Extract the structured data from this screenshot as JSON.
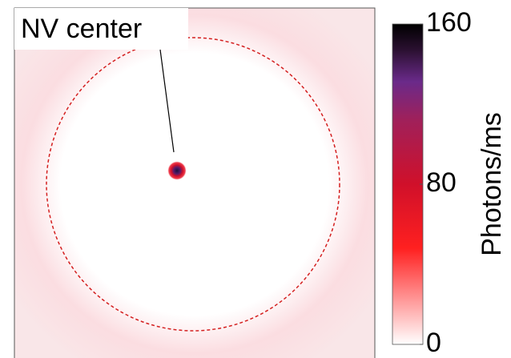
{
  "chart_data": {
    "type": "image",
    "annotation": "NV center",
    "colorbar": {
      "label": "Photons/ms",
      "lim": [
        0,
        160
      ],
      "ticks": [
        0,
        80,
        160
      ]
    }
  }
}
